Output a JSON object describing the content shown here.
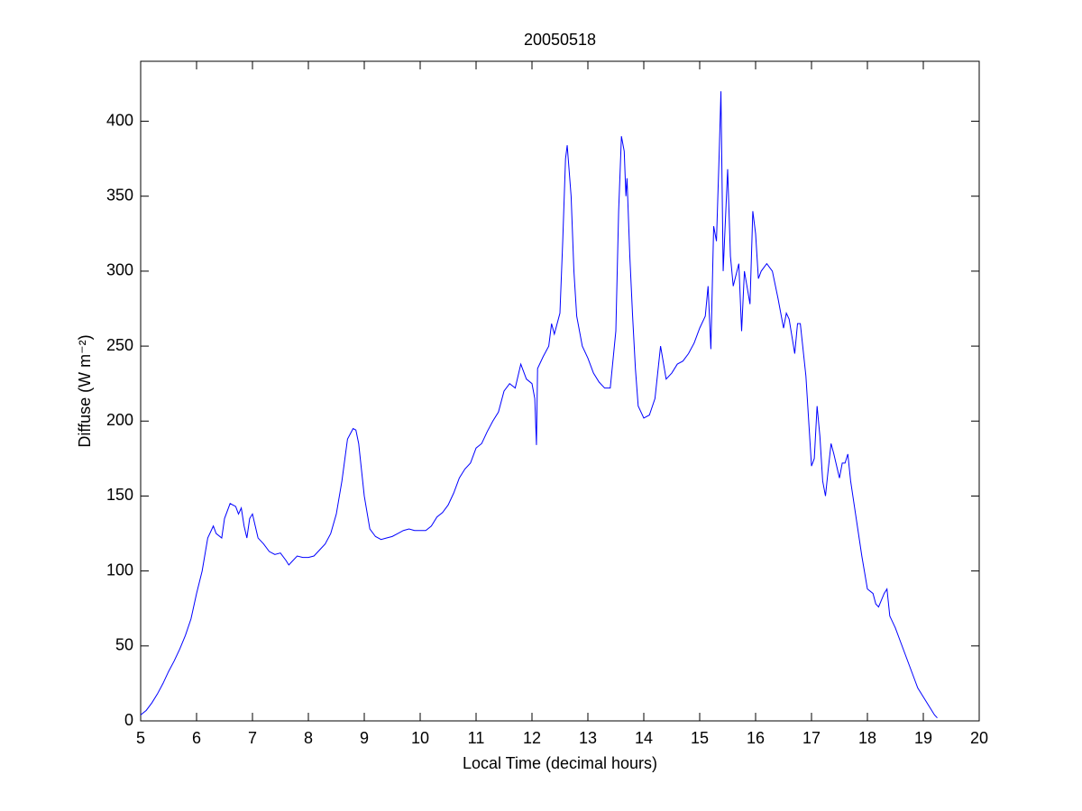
{
  "chart_data": {
    "type": "line",
    "title": "20050518",
    "xlabel": "Local Time (decimal hours)",
    "ylabel": "Diffuse (W m⁻²)",
    "xlim": [
      5,
      20
    ],
    "ylim": [
      0,
      440
    ],
    "xticks": [
      5,
      6,
      7,
      8,
      9,
      10,
      11,
      12,
      13,
      14,
      15,
      16,
      17,
      18,
      19,
      20
    ],
    "yticks": [
      0,
      50,
      100,
      150,
      200,
      250,
      300,
      350,
      400
    ],
    "grid": false,
    "x": [
      5.0,
      5.1,
      5.2,
      5.3,
      5.4,
      5.5,
      5.6,
      5.7,
      5.8,
      5.9,
      6.0,
      6.1,
      6.2,
      6.3,
      6.35,
      6.45,
      6.5,
      6.6,
      6.7,
      6.75,
      6.8,
      6.85,
      6.9,
      6.95,
      7.0,
      7.05,
      7.1,
      7.2,
      7.3,
      7.4,
      7.5,
      7.6,
      7.65,
      7.7,
      7.8,
      7.9,
      8.0,
      8.1,
      8.2,
      8.3,
      8.4,
      8.5,
      8.6,
      8.7,
      8.8,
      8.85,
      8.9,
      9.0,
      9.1,
      9.2,
      9.3,
      9.4,
      9.5,
      9.6,
      9.7,
      9.8,
      9.9,
      10.0,
      10.1,
      10.2,
      10.3,
      10.4,
      10.5,
      10.6,
      10.7,
      10.8,
      10.9,
      11.0,
      11.1,
      11.2,
      11.3,
      11.4,
      11.5,
      11.6,
      11.7,
      11.75,
      11.8,
      11.9,
      12.0,
      12.05,
      12.08,
      12.1,
      12.2,
      12.3,
      12.35,
      12.4,
      12.5,
      12.55,
      12.6,
      12.63,
      12.7,
      12.75,
      12.8,
      12.9,
      13.0,
      13.1,
      13.2,
      13.3,
      13.4,
      13.5,
      13.55,
      13.6,
      13.65,
      13.68,
      13.7,
      13.75,
      13.8,
      13.85,
      13.9,
      14.0,
      14.1,
      14.2,
      14.3,
      14.4,
      14.5,
      14.6,
      14.7,
      14.8,
      14.9,
      15.0,
      15.1,
      15.15,
      15.2,
      15.25,
      15.3,
      15.35,
      15.38,
      15.42,
      15.5,
      15.55,
      15.6,
      15.7,
      15.75,
      15.8,
      15.9,
      15.95,
      16.0,
      16.05,
      16.1,
      16.2,
      16.3,
      16.4,
      16.5,
      16.55,
      16.6,
      16.7,
      16.75,
      16.8,
      16.9,
      17.0,
      17.05,
      17.1,
      17.15,
      17.2,
      17.25,
      17.3,
      17.35,
      17.4,
      17.5,
      17.55,
      17.6,
      17.65,
      17.7,
      17.8,
      17.9,
      18.0,
      18.1,
      18.15,
      18.2,
      18.3,
      18.35,
      18.4,
      18.5,
      18.6,
      18.7,
      18.8,
      18.9,
      19.0,
      19.1,
      19.2,
      19.25
    ],
    "series": [
      {
        "name": "Diffuse",
        "color": "#0000ff",
        "values": [
          4,
          7,
          12,
          18,
          25,
          33,
          40,
          48,
          57,
          68,
          85,
          100,
          122,
          130,
          125,
          122,
          135,
          145,
          143,
          138,
          142,
          130,
          122,
          135,
          138,
          130,
          122,
          118,
          113,
          111,
          112,
          107,
          104,
          106,
          110,
          109,
          109,
          110,
          114,
          118,
          125,
          138,
          160,
          188,
          195,
          194,
          185,
          150,
          128,
          123,
          121,
          122,
          123,
          125,
          127,
          128,
          127,
          127,
          127,
          130,
          136,
          139,
          144,
          152,
          162,
          168,
          172,
          182,
          185,
          193,
          200,
          206,
          220,
          225,
          222,
          230,
          238,
          228,
          225,
          215,
          184,
          235,
          243,
          250,
          265,
          258,
          272,
          320,
          375,
          384,
          350,
          300,
          270,
          250,
          242,
          232,
          226,
          222,
          222,
          260,
          340,
          390,
          380,
          350,
          362,
          310,
          270,
          235,
          210,
          202,
          204,
          215,
          250,
          228,
          232,
          238,
          240,
          245,
          252,
          262,
          270,
          290,
          248,
          330,
          320,
          380,
          420,
          300,
          368,
          310,
          290,
          305,
          260,
          300,
          278,
          340,
          325,
          295,
          300,
          305,
          300,
          282,
          262,
          272,
          268,
          245,
          265,
          265,
          230,
          170,
          175,
          210,
          190,
          160,
          150,
          168,
          185,
          178,
          162,
          172,
          172,
          178,
          160,
          135,
          110,
          88,
          85,
          78,
          76,
          85,
          88,
          70,
          62,
          52,
          42,
          32,
          22,
          16,
          10,
          4,
          2
        ]
      }
    ]
  }
}
